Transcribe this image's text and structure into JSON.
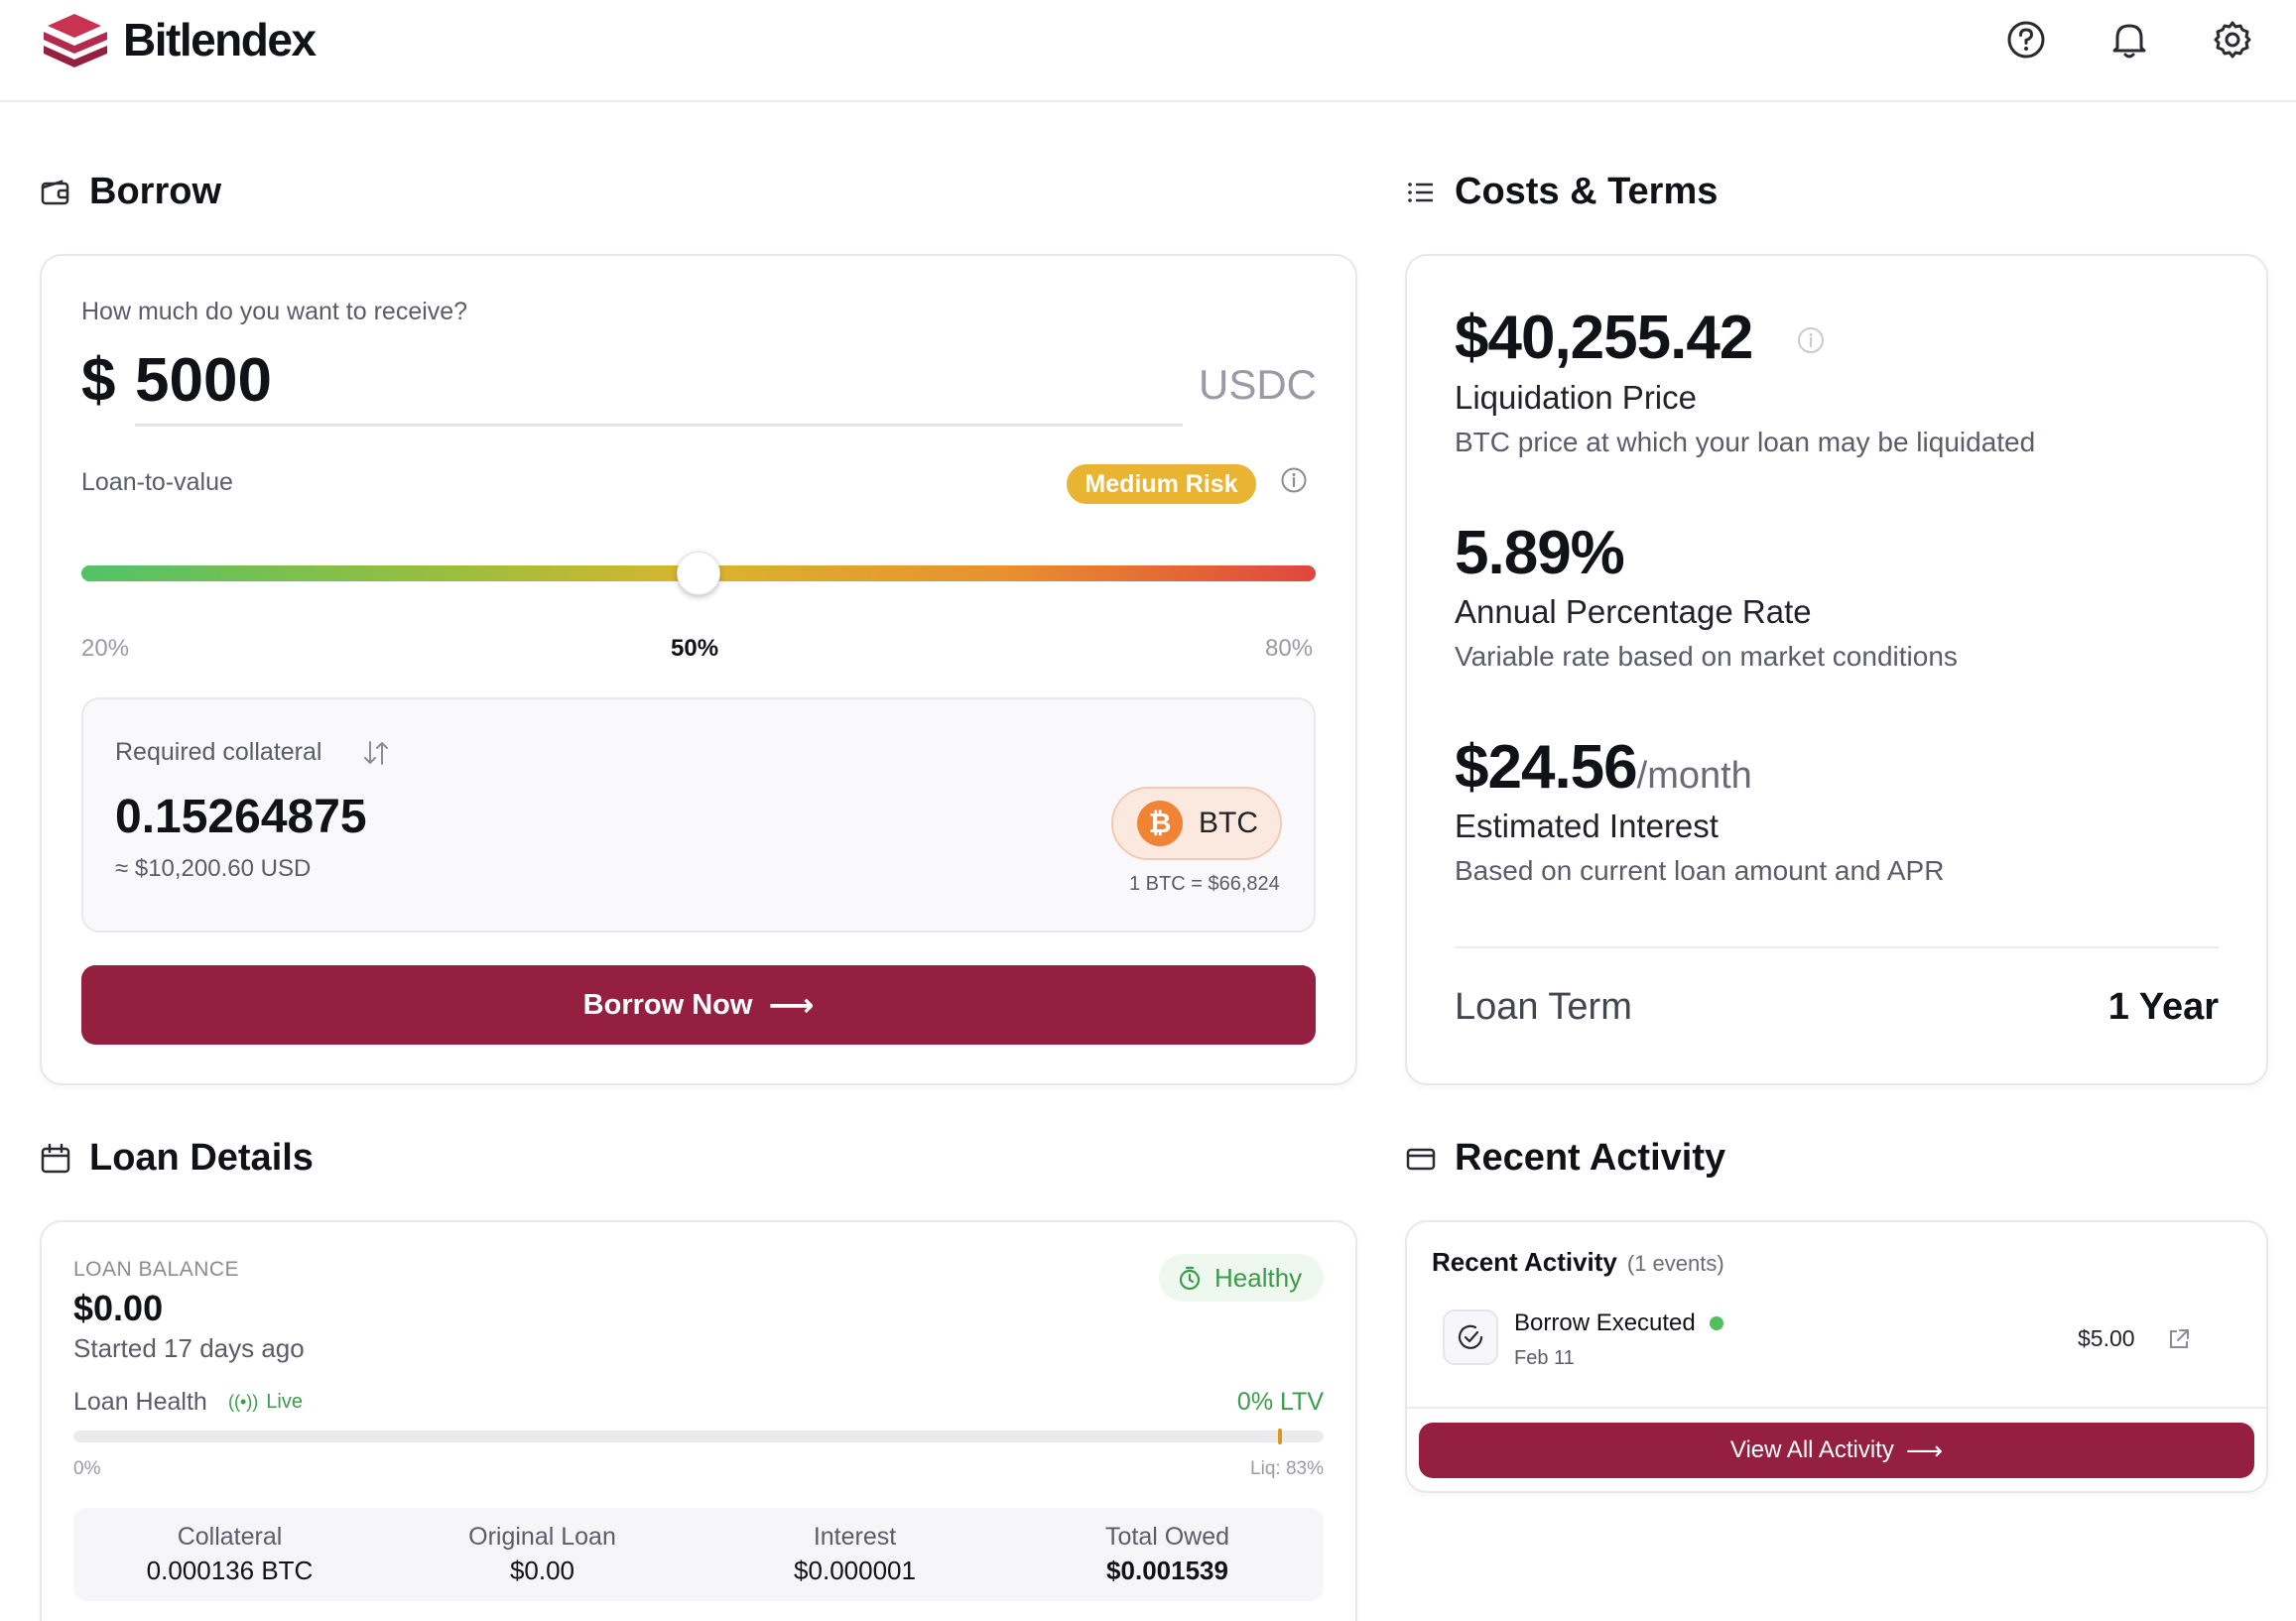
{
  "header": {
    "brand": "Bitlendex",
    "icons": [
      "help-icon",
      "bell-icon",
      "gear-icon"
    ]
  },
  "borrow": {
    "section_title": "Borrow",
    "prompt": "How much do you want to receive?",
    "currency_symbol": "$",
    "amount": "5000",
    "unit": "USDC",
    "ltv_label": "Loan-to-value",
    "risk_badge": "Medium Risk",
    "ltv_min": "20%",
    "ltv_current": "50%",
    "ltv_max": "80%",
    "ltv_value": 50,
    "collateral": {
      "label": "Required collateral",
      "value": "0.15264875",
      "usd": "≈ $10,200.60 USD",
      "asset": "BTC",
      "rate": "1 BTC = $66,824"
    },
    "cta": "Borrow Now"
  },
  "costs": {
    "section_title": "Costs & Terms",
    "liquidation_value": "$40,255.42",
    "liquidation_label": "Liquidation Price",
    "liquidation_desc": "BTC price at which your loan may be liquidated",
    "apr_value": "5.89%",
    "apr_label": "Annual Percentage Rate",
    "apr_desc": "Variable rate based on market conditions",
    "interest_value": "$24.56",
    "interest_suffix": "/month",
    "interest_label": "Estimated Interest",
    "interest_desc": "Based on current loan amount and APR",
    "term_label": "Loan Term",
    "term_value": "1 Year"
  },
  "loan_details": {
    "section_title": "Loan Details",
    "balance_label": "LOAN BALANCE",
    "balance_value": "$0.00",
    "started": "Started 17 days ago",
    "status": "Healthy",
    "health_label": "Loan Health",
    "live": "Live",
    "ltv": "0% LTV",
    "scale_min": "0%",
    "scale_liq": "Liq: 83%",
    "stats": [
      {
        "label": "Collateral",
        "value": "0.000136 BTC"
      },
      {
        "label": "Original Loan",
        "value": "$0.00"
      },
      {
        "label": "Interest",
        "value": "$0.000001"
      },
      {
        "label": "Total Owed",
        "value": "$0.001539"
      }
    ]
  },
  "recent_activity": {
    "section_title": "Recent Activity",
    "card_title": "Recent Activity",
    "count": "(1 events)",
    "items": [
      {
        "title": "Borrow Executed",
        "date": "Feb 11",
        "amount": "$5.00"
      }
    ],
    "cta": "View All Activity"
  },
  "colors": {
    "brand": "#951f40",
    "risk": "#e8b431",
    "healthy": "#3a9b4a",
    "btc": "#f08434"
  }
}
